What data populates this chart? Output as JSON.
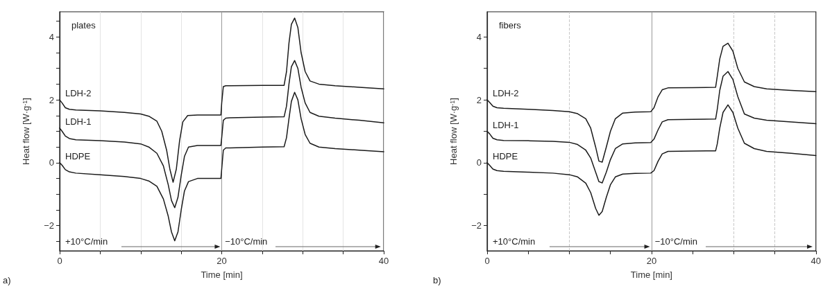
{
  "chart_data": [
    {
      "type": "line",
      "title": "plates",
      "xlabel": "Time [min]",
      "ylabel": "Heat flow [W·g$^{-1}$]",
      "annotations": [
        "+10°C/min",
        "−10°C/min",
        "a)"
      ],
      "xlim": [
        0,
        40
      ],
      "xticks": [
        0,
        {
          "value": 5,
          "label": null
        },
        {
          "value": 10,
          "label": null
        },
        {
          "value": 15,
          "label": null
        },
        20,
        {
          "value": 25,
          "label": null
        },
        {
          "value": 30,
          "label": null
        },
        {
          "value": 35,
          "label": null
        },
        40
      ],
      "ylim": [
        -2.8,
        4.8
      ],
      "yticks": [
        {
          "value": -2.5,
          "label": null
        },
        -2,
        {
          "value": -1.5,
          "label": null
        },
        {
          "value": -1,
          "label": null
        },
        {
          "value": -0.5,
          "label": null
        },
        0,
        {
          "value": 0.5,
          "label": null
        },
        {
          "value": 1,
          "label": null
        },
        {
          "value": 1.5,
          "label": null
        },
        2,
        {
          "value": 2.5,
          "label": null
        },
        {
          "value": 3,
          "label": null
        },
        {
          "value": 3.5,
          "label": null
        },
        4,
        {
          "value": 4.5,
          "label": null
        }
      ],
      "grid": "x",
      "legend": false,
      "marker": "none",
      "line_style": "solid",
      "ref_lines": [
        {
          "axis": "x",
          "value": 20,
          "color": "#999999",
          "line_style": "solid"
        }
      ],
      "series": [
        {
          "name": "LDH-2",
          "color": "#1a1a1a",
          "x": [
            0,
            0.3,
            0.7,
            1.2,
            2,
            5,
            8,
            10,
            11,
            12,
            12.6,
            13.2,
            13.6,
            14.0,
            14.4,
            14.8,
            15.2,
            15.8,
            17,
            19.9,
            20.0,
            20.2,
            20.5,
            21,
            25,
            27.7,
            28.0,
            28.3,
            28.6,
            29.0,
            29.4,
            29.8,
            30.3,
            30.9,
            32,
            34,
            37,
            40
          ],
          "values": [
            2.0,
            1.9,
            1.75,
            1.7,
            1.68,
            1.65,
            1.6,
            1.55,
            1.48,
            1.32,
            1.0,
            0.4,
            -0.2,
            -0.62,
            -0.2,
            0.7,
            1.3,
            1.5,
            1.52,
            1.52,
            1.9,
            2.42,
            2.45,
            2.45,
            2.46,
            2.46,
            2.9,
            3.8,
            4.4,
            4.6,
            4.3,
            3.5,
            2.9,
            2.6,
            2.5,
            2.45,
            2.4,
            2.35
          ]
        },
        {
          "name": "LDH-1",
          "color": "#1a1a1a",
          "x": [
            0,
            0.3,
            0.7,
            1.2,
            2,
            5,
            8,
            10,
            11,
            12,
            12.8,
            13.4,
            13.8,
            14.2,
            14.6,
            15.0,
            15.4,
            15.9,
            17,
            19.9,
            20.0,
            20.2,
            20.5,
            21,
            25,
            27.7,
            28.0,
            28.3,
            28.6,
            29.0,
            29.4,
            29.8,
            30.3,
            30.9,
            32,
            34,
            37,
            40
          ],
          "values": [
            1.1,
            1.0,
            0.85,
            0.77,
            0.73,
            0.7,
            0.66,
            0.6,
            0.5,
            0.3,
            -0.1,
            -0.7,
            -1.2,
            -1.43,
            -1.1,
            -0.4,
            0.2,
            0.5,
            0.55,
            0.55,
            0.8,
            1.35,
            1.42,
            1.43,
            1.45,
            1.46,
            1.8,
            2.5,
            3.05,
            3.25,
            3.0,
            2.4,
            1.9,
            1.6,
            1.48,
            1.42,
            1.35,
            1.27
          ]
        },
        {
          "name": "HDPE",
          "color": "#1a1a1a",
          "x": [
            0,
            0.3,
            0.7,
            1.2,
            2,
            5,
            8,
            10,
            11,
            12,
            12.8,
            13.4,
            13.8,
            14.2,
            14.6,
            15.0,
            15.4,
            15.9,
            17,
            19.9,
            20.0,
            20.2,
            20.5,
            21,
            25,
            27.7,
            28.0,
            28.3,
            28.6,
            29.0,
            29.4,
            29.8,
            30.3,
            30.9,
            32,
            34,
            37,
            40
          ],
          "values": [
            0,
            -0.08,
            -0.22,
            -0.29,
            -0.33,
            -0.38,
            -0.44,
            -0.5,
            -0.58,
            -0.75,
            -1.15,
            -1.7,
            -2.2,
            -2.48,
            -2.2,
            -1.5,
            -0.9,
            -0.6,
            -0.5,
            -0.5,
            -0.2,
            0.4,
            0.47,
            0.47,
            0.5,
            0.51,
            0.8,
            1.4,
            1.95,
            2.24,
            2.0,
            1.4,
            0.9,
            0.62,
            0.5,
            0.45,
            0.4,
            0.35
          ]
        }
      ]
    },
    {
      "type": "line",
      "title": "fibers",
      "xlabel": "Time [min]",
      "ylabel": "Heat flow [W·g$^{-1}$]",
      "annotations": [
        "+10°C/min",
        "−10°C/min",
        "b)"
      ],
      "xlim": [
        0,
        40
      ],
      "xticks": [
        0,
        {
          "value": 5,
          "label": null
        },
        {
          "value": 10,
          "label": null
        },
        {
          "value": 15,
          "label": null
        },
        20,
        {
          "value": 25,
          "label": null
        },
        {
          "value": 30,
          "label": null
        },
        {
          "value": 35,
          "label": null
        },
        40
      ],
      "ylim": [
        -2.8,
        4.8
      ],
      "yticks": [
        -2,
        {
          "value": -1,
          "label": null
        },
        0,
        {
          "value": 1,
          "label": null
        },
        2,
        {
          "value": 3,
          "label": null
        },
        4
      ],
      "legend": false,
      "marker": "none",
      "line_style": "solid",
      "ref_lines": [
        {
          "axis": "x",
          "value": 10,
          "color": "#c8c8c8",
          "line_style": "dashed"
        },
        {
          "axis": "x",
          "value": 20,
          "color": "#999999",
          "line_style": "solid"
        },
        {
          "axis": "x",
          "value": 30,
          "color": "#c8c8c8",
          "line_style": "dashed"
        },
        {
          "axis": "x",
          "value": 35,
          "color": "#c8c8c8",
          "line_style": "dashed"
        }
      ],
      "series": [
        {
          "name": "LDH-2",
          "color": "#1a1a1a",
          "x": [
            0,
            0.3,
            0.7,
            1.2,
            2,
            5,
            8,
            10,
            11,
            12,
            12.6,
            13.2,
            13.6,
            14.0,
            14.5,
            15.0,
            15.6,
            16.5,
            18,
            19.9,
            20.3,
            20.8,
            21.3,
            22,
            25,
            27.8,
            28.0,
            28.3,
            28.7,
            29.3,
            29.9,
            30.5,
            31.3,
            32.5,
            34,
            37,
            40
          ],
          "values": [
            2.0,
            1.92,
            1.8,
            1.75,
            1.73,
            1.7,
            1.66,
            1.62,
            1.56,
            1.4,
            1.1,
            0.5,
            0.05,
            0.02,
            0.5,
            1.0,
            1.4,
            1.58,
            1.61,
            1.62,
            1.75,
            2.1,
            2.32,
            2.38,
            2.39,
            2.4,
            2.75,
            3.3,
            3.7,
            3.8,
            3.55,
            3.0,
            2.57,
            2.42,
            2.35,
            2.3,
            2.26
          ]
        },
        {
          "name": "LDH-1",
          "color": "#1a1a1a",
          "x": [
            0,
            0.3,
            0.7,
            1.2,
            2,
            5,
            8,
            10,
            11,
            12,
            12.6,
            13.2,
            13.6,
            14.0,
            14.5,
            15.0,
            15.6,
            16.5,
            18,
            19.9,
            20.3,
            20.8,
            21.3,
            22,
            25,
            27.8,
            28.0,
            28.3,
            28.7,
            29.3,
            29.9,
            30.5,
            31.3,
            32.5,
            34,
            37,
            40
          ],
          "values": [
            1.0,
            0.92,
            0.78,
            0.73,
            0.71,
            0.7,
            0.68,
            0.65,
            0.58,
            0.4,
            0.15,
            -0.3,
            -0.6,
            -0.64,
            -0.3,
            0.1,
            0.45,
            0.6,
            0.63,
            0.64,
            0.75,
            1.05,
            1.3,
            1.37,
            1.38,
            1.39,
            1.7,
            2.3,
            2.75,
            2.9,
            2.65,
            2.1,
            1.55,
            1.42,
            1.35,
            1.3,
            1.24
          ]
        },
        {
          "name": "HDPE",
          "color": "#1a1a1a",
          "x": [
            0,
            0.3,
            0.7,
            1.2,
            2,
            5,
            8,
            10,
            11,
            12,
            12.6,
            13.2,
            13.6,
            14.0,
            14.5,
            15.0,
            15.6,
            16.5,
            18,
            19.9,
            20.3,
            20.8,
            21.3,
            22,
            25,
            27.8,
            28.0,
            28.3,
            28.7,
            29.3,
            29.9,
            30.5,
            31.3,
            32.5,
            34,
            37,
            40
          ],
          "values": [
            0,
            -0.08,
            -0.2,
            -0.25,
            -0.27,
            -0.3,
            -0.33,
            -0.38,
            -0.45,
            -0.65,
            -0.95,
            -1.45,
            -1.67,
            -1.55,
            -1.1,
            -0.7,
            -0.45,
            -0.36,
            -0.34,
            -0.33,
            -0.25,
            0.05,
            0.28,
            0.36,
            0.37,
            0.38,
            0.6,
            1.1,
            1.6,
            1.84,
            1.6,
            1.1,
            0.62,
            0.45,
            0.36,
            0.3,
            0.23
          ]
        }
      ]
    }
  ]
}
